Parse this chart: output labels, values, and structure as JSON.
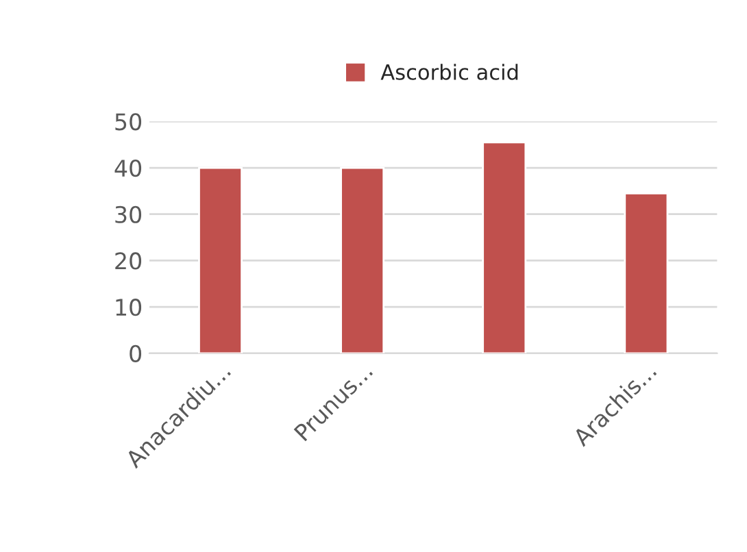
{
  "chart_data": {
    "type": "bar",
    "categories": [
      "Anacardiu...",
      "Prunus...",
      null,
      "Arachis..."
    ],
    "series": [
      {
        "name": "Ascorbic acid",
        "color": "#c0504d",
        "values": [
          40,
          40,
          45.5,
          34.5
        ]
      }
    ],
    "ylim": [
      0,
      50
    ],
    "yticks": [
      0,
      10,
      20,
      30,
      40,
      50
    ],
    "grid": "y",
    "legend": "top"
  }
}
